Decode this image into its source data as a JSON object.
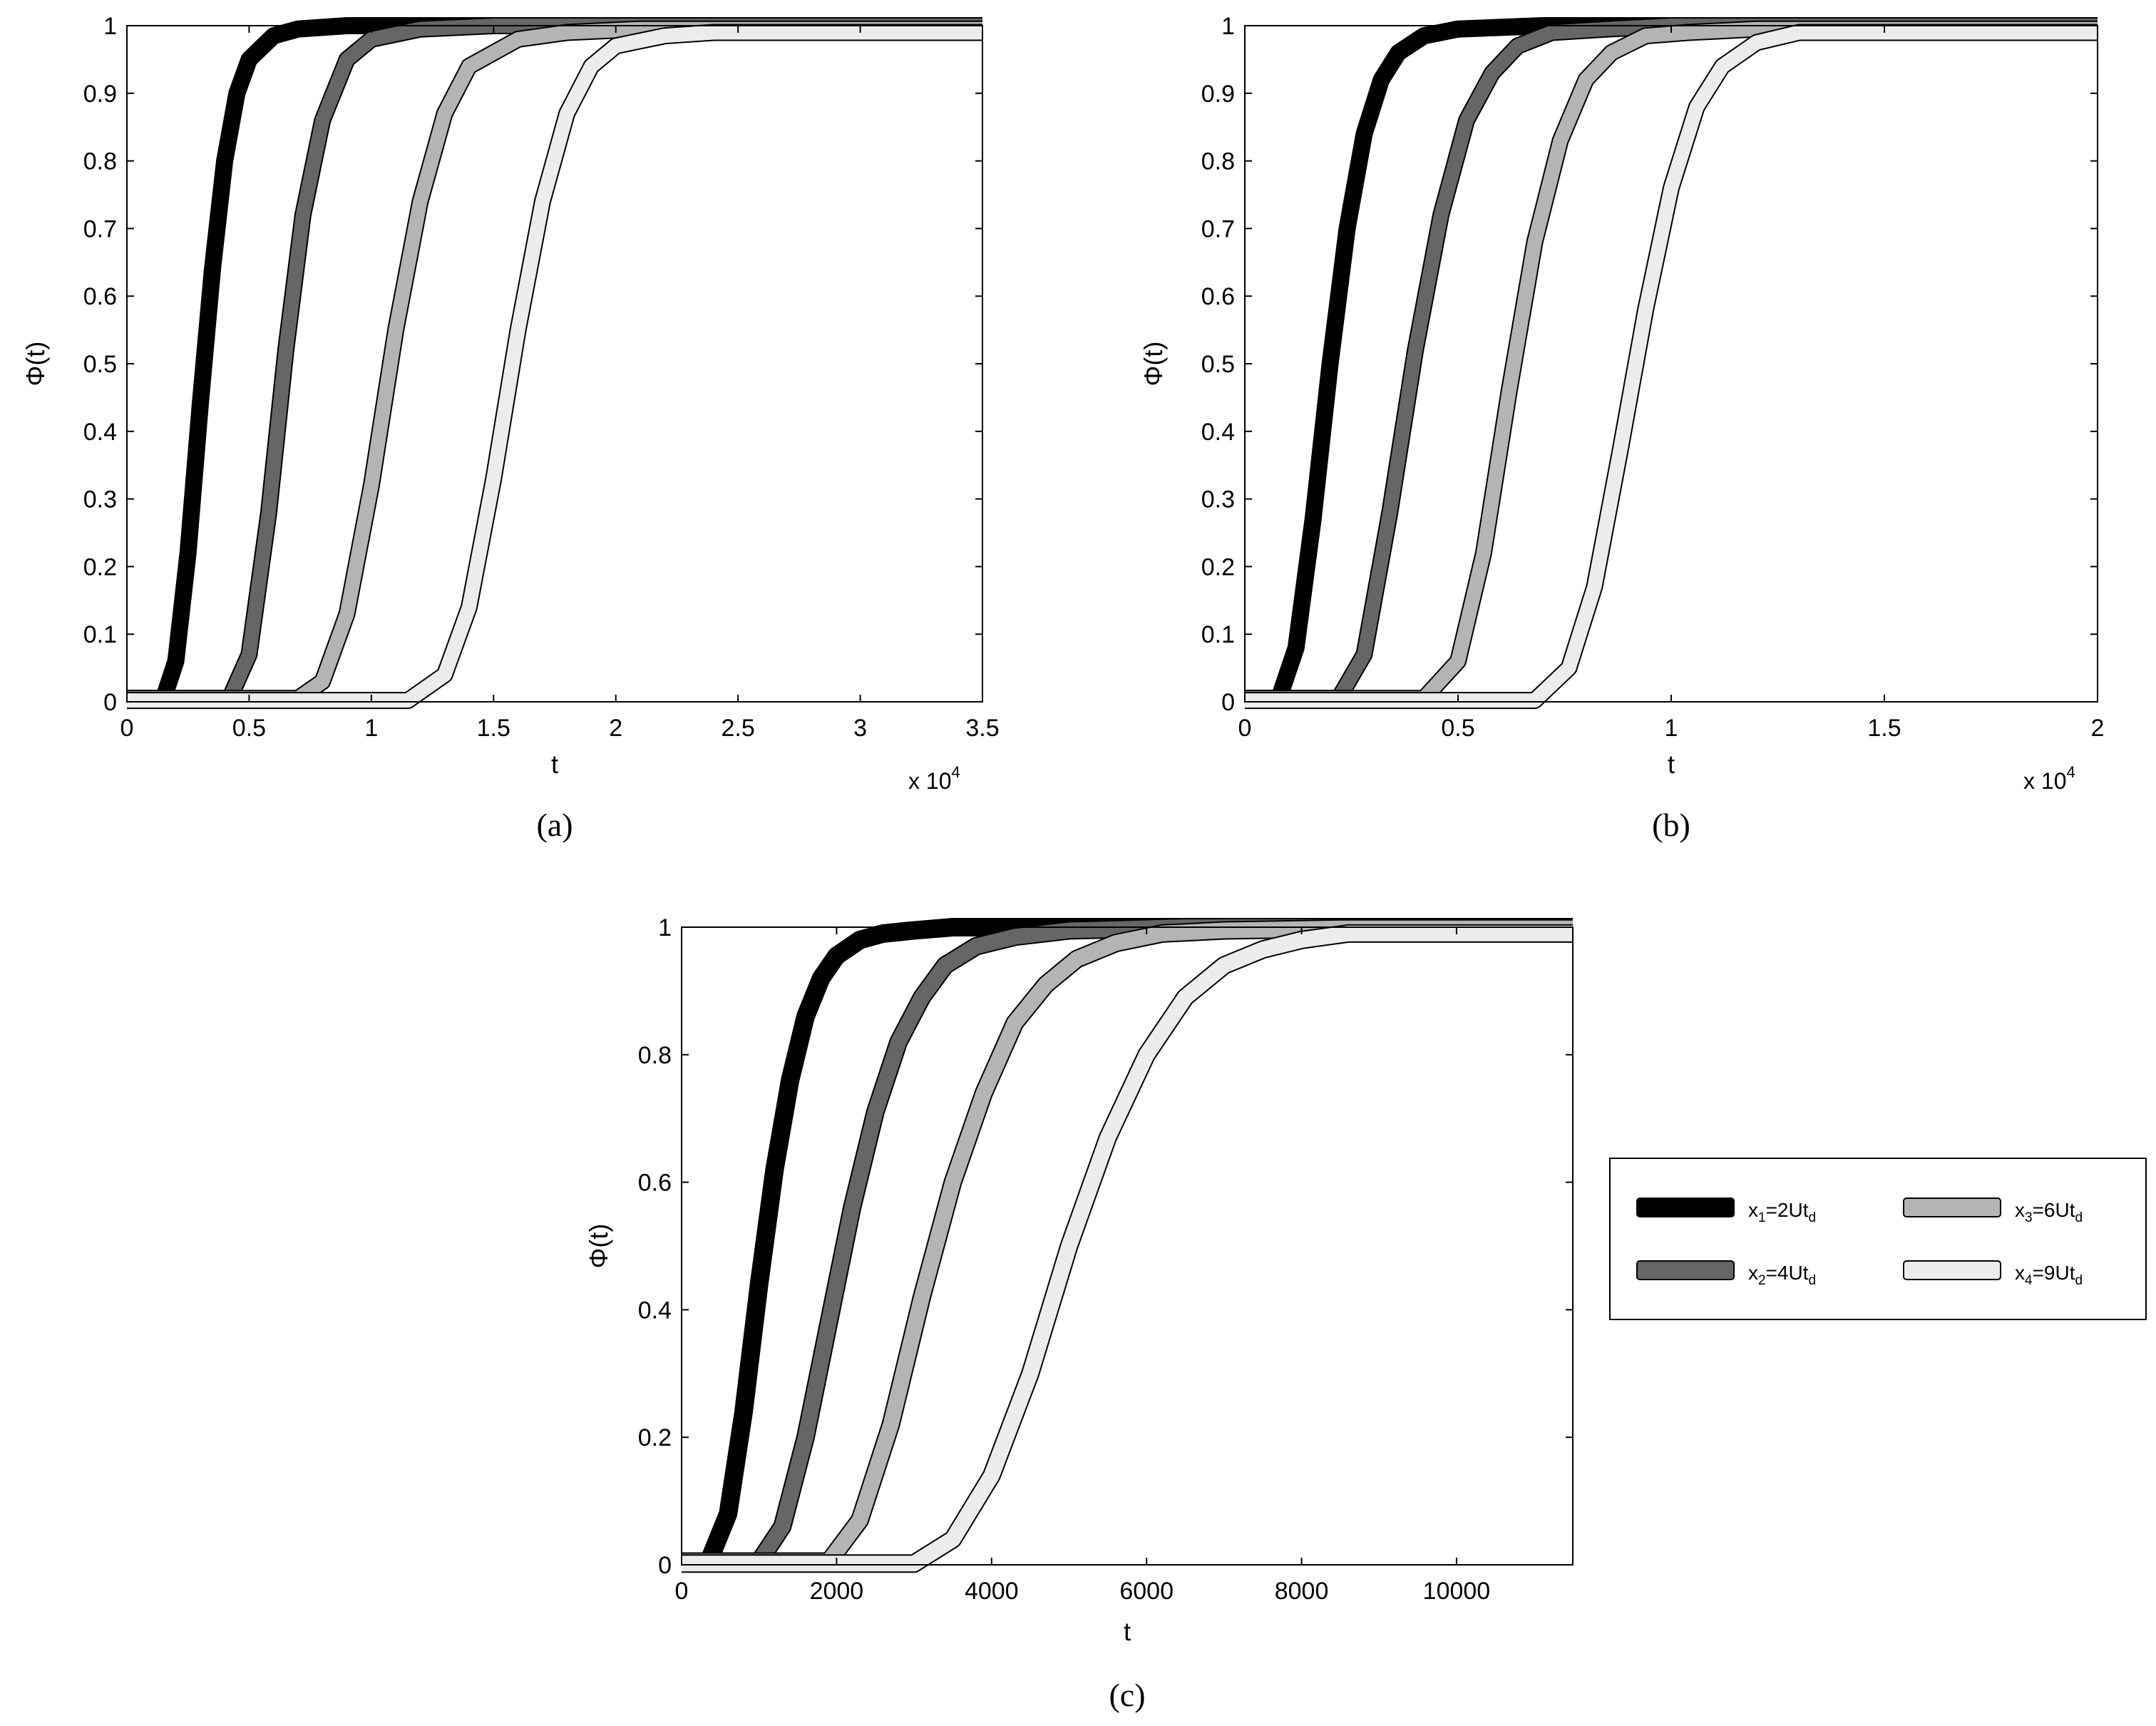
{
  "legend": {
    "placement": "right of panel (c)",
    "entries": [
      {
        "base": "x",
        "sub": "1",
        "mid": "=2Ut",
        "sub2": "d"
      },
      {
        "base": "x",
        "sub": "2",
        "mid": "=4Ut",
        "sub2": "d"
      },
      {
        "base": "x",
        "sub": "3",
        "mid": "=6Ut",
        "sub2": "d"
      },
      {
        "base": "x",
        "sub": "4",
        "mid": "=9Ut",
        "sub2": "d"
      }
    ]
  },
  "series_colors": [
    "#000000",
    "#666666",
    "#b4b4b4",
    "#ececec"
  ],
  "chart_data": [
    {
      "type": "line",
      "panel": "(a)",
      "xlabel": "t",
      "ylabel": "Φ(t)",
      "x_multiplier_label": "x 10",
      "x_multiplier_exp": "4",
      "xlim": [
        0,
        35000
      ],
      "ylim": [
        0,
        1
      ],
      "xticks": [
        0,
        5000,
        10000,
        15000,
        20000,
        25000,
        30000,
        35000
      ],
      "xtick_labels": [
        "0",
        "0.5",
        "1",
        "1.5",
        "2",
        "2.5",
        "3",
        "3.5"
      ],
      "yticks": [
        0,
        0.1,
        0.2,
        0.3,
        0.4,
        0.5,
        0.6,
        0.7,
        0.8,
        0.9,
        1
      ],
      "ytick_labels": [
        "0",
        "0.1",
        "0.2",
        "0.3",
        "0.4",
        "0.5",
        "0.6",
        "0.7",
        "0.8",
        "0.9",
        "1"
      ],
      "grid": false,
      "series": [
        {
          "x": [
            0,
            1500,
            2000,
            2500,
            3000,
            3500,
            4000,
            4500,
            5000,
            6000,
            7000,
            9000,
            35000
          ],
          "y": [
            0.005,
            0.005,
            0.06,
            0.22,
            0.44,
            0.64,
            0.8,
            0.9,
            0.95,
            0.985,
            0.995,
            1,
            1
          ]
        },
        {
          "x": [
            0,
            4200,
            5000,
            5800,
            6500,
            7200,
            8000,
            9000,
            10000,
            12000,
            15000,
            35000
          ],
          "y": [
            0.005,
            0.005,
            0.07,
            0.28,
            0.52,
            0.72,
            0.86,
            0.95,
            0.98,
            0.995,
            1,
            1
          ]
        },
        {
          "x": [
            0,
            7000,
            8000,
            9000,
            10000,
            11000,
            12000,
            13000,
            14000,
            16000,
            18000,
            21000,
            35000
          ],
          "y": [
            0.005,
            0.005,
            0.03,
            0.13,
            0.32,
            0.55,
            0.74,
            0.87,
            0.94,
            0.98,
            0.99,
            0.995,
            0.995
          ]
        },
        {
          "x": [
            0,
            11500,
            13000,
            14000,
            15000,
            16000,
            17000,
            18000,
            19000,
            20000,
            22000,
            24000,
            27000,
            35000
          ],
          "y": [
            0.002,
            0.002,
            0.04,
            0.14,
            0.33,
            0.55,
            0.74,
            0.87,
            0.94,
            0.97,
            0.985,
            0.99,
            0.99,
            0.99
          ]
        }
      ]
    },
    {
      "type": "line",
      "panel": "(b)",
      "xlabel": "t",
      "ylabel": "Φ(t)",
      "x_multiplier_label": "x 10",
      "x_multiplier_exp": "4",
      "xlim": [
        0,
        20000
      ],
      "ylim": [
        0,
        1
      ],
      "xticks": [
        0,
        5000,
        10000,
        15000,
        20000
      ],
      "xtick_labels": [
        "0",
        "0.5",
        "1",
        "1.5",
        "2"
      ],
      "yticks": [
        0,
        0.1,
        0.2,
        0.3,
        0.4,
        0.5,
        0.6,
        0.7,
        0.8,
        0.9,
        1
      ],
      "ytick_labels": [
        "0",
        "0.1",
        "0.2",
        "0.3",
        "0.4",
        "0.5",
        "0.6",
        "0.7",
        "0.8",
        "0.9",
        "1"
      ],
      "grid": false,
      "series": [
        {
          "x": [
            0,
            800,
            1200,
            1600,
            2000,
            2400,
            2800,
            3200,
            3600,
            4200,
            5000,
            7000,
            20000
          ],
          "y": [
            0.005,
            0.005,
            0.08,
            0.27,
            0.5,
            0.7,
            0.84,
            0.92,
            0.96,
            0.985,
            0.995,
            1,
            1
          ]
        },
        {
          "x": [
            0,
            2200,
            2800,
            3400,
            4000,
            4600,
            5200,
            5800,
            6400,
            7200,
            8500,
            10000,
            20000
          ],
          "y": [
            0.005,
            0.005,
            0.07,
            0.28,
            0.52,
            0.72,
            0.86,
            0.93,
            0.97,
            0.99,
            0.995,
            1,
            1
          ]
        },
        {
          "x": [
            0,
            4200,
            5000,
            5600,
            6200,
            6800,
            7400,
            8000,
            8600,
            9400,
            10400,
            12000,
            20000
          ],
          "y": [
            0.005,
            0.005,
            0.06,
            0.22,
            0.46,
            0.68,
            0.83,
            0.92,
            0.96,
            0.985,
            0.99,
            0.995,
            0.995
          ]
        },
        {
          "x": [
            0,
            6800,
            7600,
            8200,
            8800,
            9400,
            10000,
            10600,
            11200,
            12000,
            13000,
            14500,
            20000
          ],
          "y": [
            0.002,
            0.002,
            0.05,
            0.17,
            0.37,
            0.58,
            0.76,
            0.88,
            0.94,
            0.975,
            0.99,
            0.99,
            0.99
          ]
        }
      ]
    },
    {
      "type": "line",
      "panel": "(c)",
      "xlabel": "t",
      "ylabel": "Φ(t)",
      "xlim": [
        0,
        11500
      ],
      "ylim": [
        0,
        1
      ],
      "xticks": [
        0,
        2000,
        4000,
        6000,
        8000,
        10000
      ],
      "xtick_labels": [
        "0",
        "2000",
        "4000",
        "6000",
        "8000",
        "10000"
      ],
      "yticks": [
        0,
        0.2,
        0.4,
        0.6,
        0.8,
        1
      ],
      "ytick_labels": [
        "0",
        "0.2",
        "0.4",
        "0.6",
        "0.8",
        "1"
      ],
      "grid": false,
      "series": [
        {
          "x": [
            0,
            350,
            600,
            800,
            1000,
            1200,
            1400,
            1600,
            1800,
            2000,
            2300,
            2600,
            3000,
            3500,
            4000,
            11500
          ],
          "y": [
            0.005,
            0.005,
            0.08,
            0.24,
            0.44,
            0.62,
            0.76,
            0.86,
            0.92,
            0.955,
            0.98,
            0.99,
            0.995,
            1,
            1,
            1
          ]
        },
        {
          "x": [
            0,
            1000,
            1300,
            1600,
            1900,
            2200,
            2500,
            2800,
            3100,
            3400,
            3800,
            4300,
            5000,
            6500,
            11500
          ],
          "y": [
            0.005,
            0.005,
            0.06,
            0.2,
            0.38,
            0.56,
            0.71,
            0.82,
            0.89,
            0.94,
            0.97,
            0.985,
            0.995,
            1,
            1
          ]
        },
        {
          "x": [
            0,
            1900,
            2300,
            2700,
            3100,
            3500,
            3900,
            4300,
            4700,
            5100,
            5600,
            6200,
            7000,
            8500,
            11500
          ],
          "y": [
            0.005,
            0.005,
            0.07,
            0.22,
            0.42,
            0.6,
            0.74,
            0.85,
            0.91,
            0.95,
            0.975,
            0.99,
            0.995,
            0.998,
            0.998
          ]
        },
        {
          "x": [
            0,
            3000,
            3500,
            4000,
            4500,
            5000,
            5500,
            6000,
            6500,
            7000,
            7500,
            8000,
            8600,
            9500,
            11500
          ],
          "y": [
            0.002,
            0.002,
            0.04,
            0.14,
            0.3,
            0.5,
            0.67,
            0.8,
            0.89,
            0.94,
            0.965,
            0.98,
            0.99,
            0.99,
            0.99
          ]
        }
      ]
    }
  ]
}
